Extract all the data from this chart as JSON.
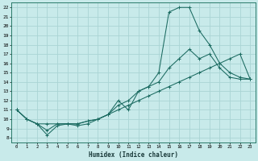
{
  "xlabel": "Humidex (Indice chaleur)",
  "bg_color": "#c8eaea",
  "grid_color": "#aad4d4",
  "line_color": "#1a6a60",
  "xlim": [
    -0.5,
    23.5
  ],
  "ylim": [
    7.5,
    22.5
  ],
  "xticks": [
    0,
    1,
    2,
    3,
    4,
    5,
    6,
    7,
    8,
    9,
    10,
    11,
    12,
    13,
    14,
    15,
    16,
    17,
    18,
    19,
    20,
    21,
    22,
    23
  ],
  "yticks": [
    8,
    9,
    10,
    11,
    12,
    13,
    14,
    15,
    16,
    17,
    18,
    19,
    20,
    21,
    22
  ],
  "series1_x": [
    0,
    1,
    2,
    3,
    4,
    5,
    6,
    7,
    8,
    9,
    10,
    11,
    12,
    13,
    14,
    15,
    16,
    17,
    18,
    19,
    20,
    21,
    22,
    23
  ],
  "series1_y": [
    11,
    10,
    9.5,
    8.3,
    9.3,
    9.5,
    9.3,
    9.5,
    10,
    10.5,
    12,
    11,
    13,
    13.5,
    15,
    21.5,
    22,
    22,
    19.5,
    18,
    16,
    15,
    14.5,
    14.3
  ],
  "series2_x": [
    0,
    1,
    2,
    3,
    4,
    5,
    6,
    7,
    8,
    9,
    10,
    11,
    12,
    13,
    14,
    15,
    16,
    17,
    18,
    19,
    20,
    21,
    22,
    23
  ],
  "series2_y": [
    11,
    10,
    9.5,
    9.5,
    9.5,
    9.5,
    9.5,
    9.8,
    10,
    10.5,
    11.5,
    12,
    13,
    13.5,
    14,
    15.5,
    16.5,
    17.5,
    16.5,
    17,
    15.5,
    14.5,
    14.3,
    14.3
  ],
  "series3_x": [
    0,
    1,
    2,
    3,
    4,
    5,
    6,
    7,
    8,
    9,
    10,
    11,
    12,
    13,
    14,
    15,
    16,
    17,
    18,
    19,
    20,
    21,
    22,
    23
  ],
  "series3_y": [
    11,
    10,
    9.5,
    8.8,
    9.5,
    9.5,
    9.5,
    9.8,
    10,
    10.5,
    11,
    11.5,
    12,
    12.5,
    13,
    13.5,
    14,
    14.5,
    15,
    15.5,
    16,
    16.5,
    17,
    14.3
  ]
}
